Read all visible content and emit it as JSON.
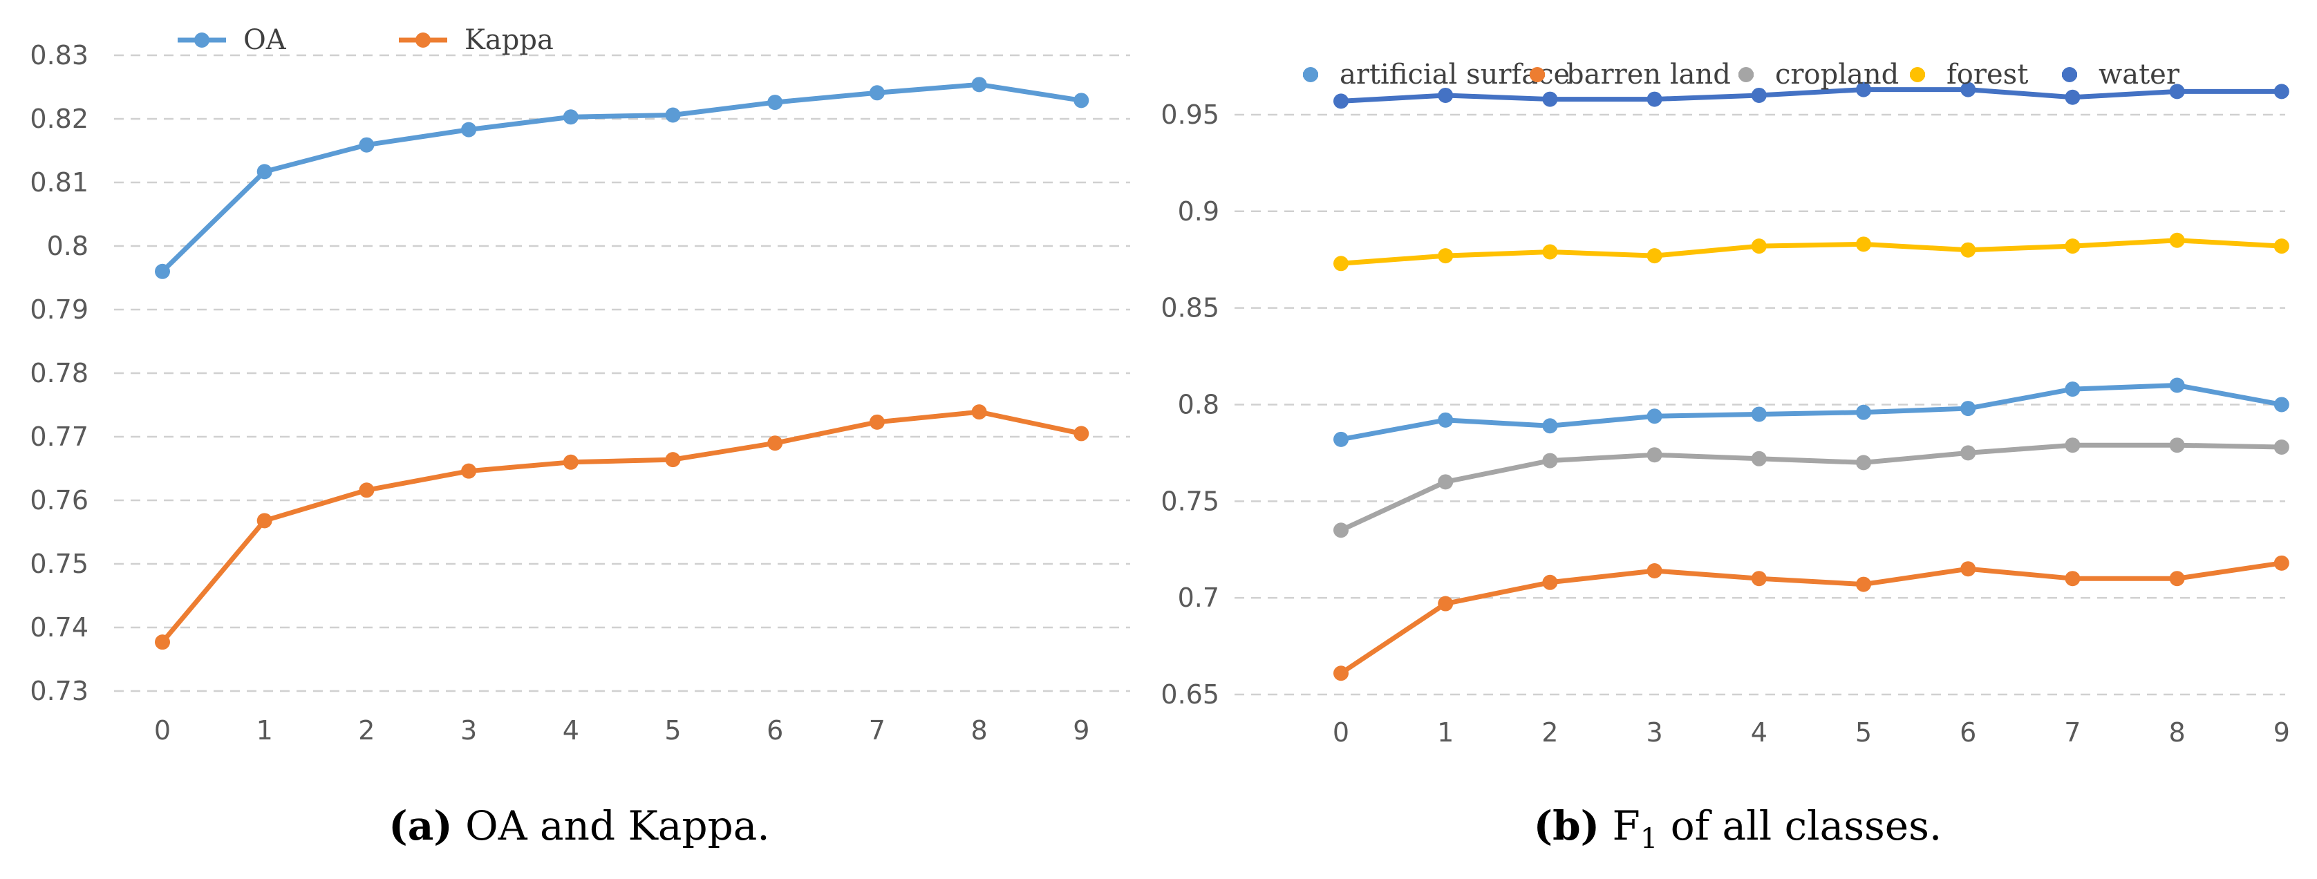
{
  "chart_data": [
    {
      "type": "line",
      "title": "",
      "xlabel": "",
      "ylabel": "",
      "categories": [
        "0",
        "1",
        "2",
        "3",
        "4",
        "5",
        "6",
        "7",
        "8",
        "9"
      ],
      "ylim": [
        0.73,
        0.83
      ],
      "yticks": [
        0.73,
        0.74,
        0.75,
        0.76,
        0.77,
        0.78,
        0.79,
        0.8,
        0.81,
        0.82,
        0.83
      ],
      "ytick_labels": [
        "0.73",
        "0.74",
        "0.75",
        "0.76",
        "0.77",
        "0.78",
        "0.79",
        "0.8",
        "0.81",
        "0.82",
        "0.83"
      ],
      "grid": true,
      "legend_position": "top",
      "series": [
        {
          "name": "OA",
          "color": "#5B9BD5",
          "values": [
            0.796,
            0.8117,
            0.8159,
            0.8183,
            0.8203,
            0.8206,
            0.8226,
            0.8241,
            0.8254,
            0.8229
          ]
        },
        {
          "name": "Kappa",
          "color": "#ED7D31",
          "values": [
            0.7377,
            0.7568,
            0.7616,
            0.7646,
            0.766,
            0.7664,
            0.769,
            0.7723,
            0.7739,
            0.7705
          ]
        }
      ],
      "caption": {
        "label": "(a)",
        "text": " OA and Kappa."
      }
    },
    {
      "type": "line",
      "title": "",
      "xlabel": "",
      "ylabel": "",
      "categories": [
        "0",
        "1",
        "2",
        "3",
        "4",
        "5",
        "6",
        "7",
        "8",
        "9"
      ],
      "ylim": [
        0.65,
        0.97
      ],
      "yticks": [
        0.65,
        0.7,
        0.75,
        0.8,
        0.85,
        0.9,
        0.95
      ],
      "ytick_labels": [
        "0.65",
        "0.7",
        "0.75",
        "0.8",
        "0.85",
        "0.9",
        "0.95"
      ],
      "grid": true,
      "legend_position": "top",
      "series": [
        {
          "name": "artificial surface",
          "color": "#5B9BD5",
          "values": [
            0.782,
            0.792,
            0.789,
            0.794,
            0.795,
            0.796,
            0.798,
            0.808,
            0.81,
            0.8
          ]
        },
        {
          "name": "barren land",
          "color": "#ED7D31",
          "values": [
            0.661,
            0.697,
            0.708,
            0.714,
            0.71,
            0.707,
            0.715,
            0.71,
            0.71,
            0.718
          ]
        },
        {
          "name": "cropland",
          "color": "#A5A5A5",
          "values": [
            0.735,
            0.76,
            0.771,
            0.774,
            0.772,
            0.77,
            0.775,
            0.779,
            0.779,
            0.778
          ]
        },
        {
          "name": "forest",
          "color": "#FFC000",
          "values": [
            0.873,
            0.877,
            0.879,
            0.877,
            0.882,
            0.883,
            0.88,
            0.882,
            0.885,
            0.882
          ]
        },
        {
          "name": "water",
          "color": "#4472C4",
          "values": [
            0.957,
            0.96,
            0.958,
            0.958,
            0.96,
            0.963,
            0.963,
            0.959,
            0.962,
            0.962
          ]
        }
      ],
      "caption": {
        "label": "(b)",
        "text": " F",
        "sub": "1",
        "text2": " of all classes."
      }
    }
  ]
}
